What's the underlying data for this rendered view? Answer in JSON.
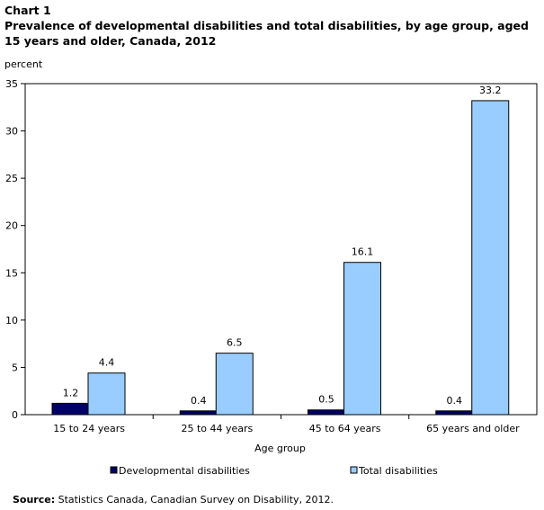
{
  "chart_label": "Chart 1",
  "chart_title": "Prevalence of developmental disabilities and total disabilities, by age group, aged 15 years and older, Canada, 2012",
  "y_unit": "percent",
  "source_label": "Source:",
  "source_text": " Statistics Canada, Canadian Survey on Disability, 2012.",
  "colors": {
    "developmental": "#000066",
    "total": "#99ccff"
  },
  "chart_data": {
    "type": "bar",
    "title": "Prevalence of developmental disabilities and total disabilities, by age group, aged 15 years and older, Canada, 2012",
    "xlabel": "Age group",
    "ylabel": "percent",
    "ylim": [
      0,
      35
    ],
    "yticks": [
      0,
      5,
      10,
      15,
      20,
      25,
      30,
      35
    ],
    "categories": [
      "15 to 24 years",
      "25 to 44 years",
      "45 to 64 years",
      "65 years and older"
    ],
    "series": [
      {
        "name": "Developmental disabilities",
        "values": [
          1.2,
          0.4,
          0.5,
          0.4
        ],
        "labels": [
          "1.2",
          "0.4",
          "0.5",
          "0.4"
        ]
      },
      {
        "name": "Total disabilities",
        "values": [
          4.4,
          6.5,
          16.1,
          33.2
        ],
        "labels": [
          "4.4",
          "6.5",
          "16.1",
          "33.2"
        ]
      }
    ],
    "legend_position": "bottom",
    "grid": false
  }
}
